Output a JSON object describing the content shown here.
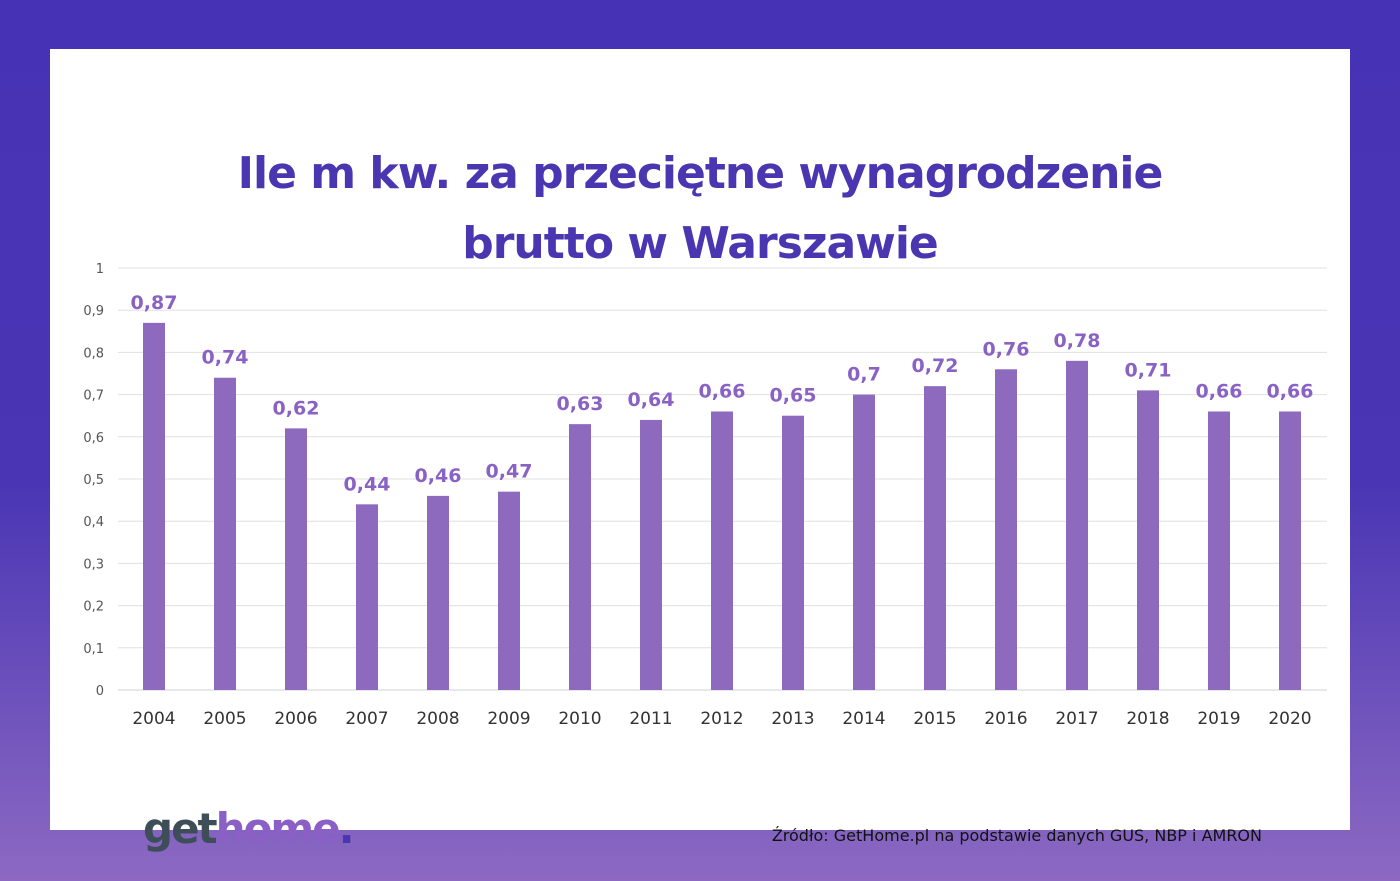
{
  "title_lines": [
    "Ile m kw. za przeciętne wynagrodzenie",
    "brutto w Warszawie"
  ],
  "source": "Źródło: GetHome.pl na podstawie danych GUS, NBP i AMRON",
  "logo": {
    "text": "gethome.",
    "parts": [
      "get",
      "home",
      "."
    ]
  },
  "colors": {
    "bar": "#8e6abf",
    "label": "#8a62c4",
    "title": "#4a36b0",
    "grid": "#e0e0e0"
  },
  "chart_data": {
    "type": "bar",
    "title": "Ile m kw. za przeciętne wynagrodzenie brutto w Warszawie",
    "categories": [
      "2004",
      "2005",
      "2006",
      "2007",
      "2008",
      "2009",
      "2010",
      "2011",
      "2012",
      "2013",
      "2014",
      "2015",
      "2016",
      "2017",
      "2018",
      "2019",
      "2020"
    ],
    "values": [
      0.87,
      0.74,
      0.62,
      0.44,
      0.46,
      0.47,
      0.63,
      0.64,
      0.66,
      0.65,
      0.7,
      0.72,
      0.76,
      0.78,
      0.71,
      0.66,
      0.66
    ],
    "data_labels": [
      "0,87",
      "0,74",
      "0,62",
      "0,44",
      "0,46",
      "0,47",
      "0,63",
      "0,64",
      "0,66",
      "0,65",
      "0,7",
      "0,72",
      "0,76",
      "0,78",
      "0,71",
      "0,66",
      "0,66"
    ],
    "yticks": [
      0,
      0.1,
      0.2,
      0.3,
      0.4,
      0.5,
      0.6,
      0.7,
      0.8,
      0.9,
      1
    ],
    "ytick_labels": [
      "0",
      "0,1",
      "0,2",
      "0,3",
      "0,4",
      "0,5",
      "0,6",
      "0,7",
      "0,8",
      "0,9",
      "1"
    ],
    "ylim": [
      0,
      1
    ],
    "grid": true,
    "legend": "none",
    "xlabel": "",
    "ylabel": ""
  }
}
